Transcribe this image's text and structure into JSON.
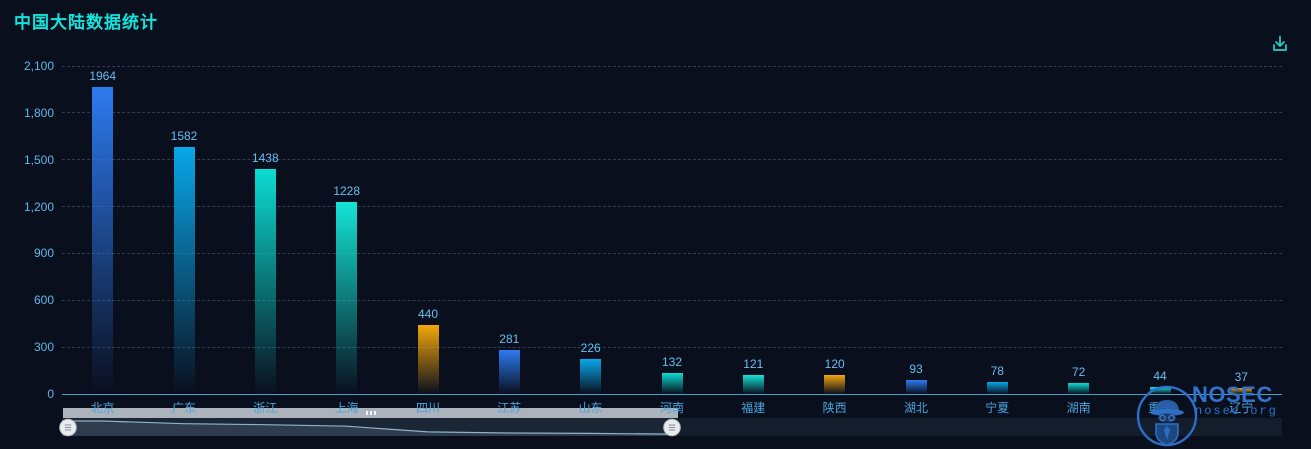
{
  "chart_data": {
    "type": "bar",
    "title": "中国大陆数据统计",
    "categories": [
      "北京",
      "广东",
      "浙江",
      "上海",
      "四川",
      "江苏",
      "山东",
      "河南",
      "福建",
      "陕西",
      "湖北",
      "宁夏",
      "湖南",
      "重庆",
      "辽宁"
    ],
    "values": [
      1964,
      1582,
      1438,
      1228,
      440,
      281,
      226,
      132,
      121,
      120,
      93,
      78,
      72,
      44,
      37
    ],
    "xlabel": "",
    "ylabel": "",
    "ylim": [
      0,
      2100
    ],
    "y_tick_step": 300,
    "y_tick_labels": [
      "0",
      "300",
      "600",
      "900",
      "1,200",
      "1,500",
      "1,800",
      "2,100"
    ],
    "grid": true,
    "legend": false,
    "bar_palette": [
      "#2d7af0",
      "#09a7e9",
      "#0bdcd2",
      "#14e4d6",
      "#f3a70a"
    ]
  },
  "toolbox": {
    "download_icon": "save-as-image"
  },
  "datazoom": {
    "type": "slider",
    "selected_start_category": "北京",
    "selected_end_category": "河南"
  },
  "watermark": {
    "brand": "NOSEC",
    "domain": "nosec.org"
  },
  "colors": {
    "background": "#0a0f1e",
    "title": "#12e4dc",
    "value-label": "#68beee",
    "axis-label": "#4aa4dc",
    "y-label": "#5fb8e8",
    "axis-line": "#4e9fc7",
    "gridline": "#2e3d58",
    "download-icon": "#25cfc9",
    "watermark-blue": "#2f73cc",
    "slider-bar": "#adb3bd",
    "slider-track": "#141d2b"
  }
}
